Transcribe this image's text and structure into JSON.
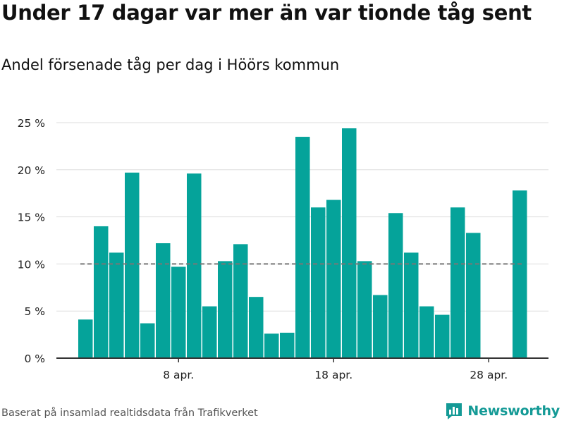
{
  "title": "Under 17 dagar var mer än var tionde tåg sent",
  "subtitle": "Andel försenade tåg per dag i Höörs kommun",
  "footer": "Baserat på insamlad realtidsdata från Trafikverket",
  "brand": {
    "name": "Newsworthy",
    "icon": "bar-chart-logo-icon",
    "color": "#149a96"
  },
  "colors": {
    "bar": "#05a39a",
    "grid": "#dddddd",
    "axis": "#333333",
    "reference_line": "#777777"
  },
  "chart_data": {
    "type": "bar",
    "title": "Under 17 dagar var mer än var tionde tåg sent",
    "subtitle": "Andel försenade tåg per dag i Höörs kommun",
    "xlabel": "",
    "ylabel": "",
    "x_unit": "day of April",
    "categories": [
      2,
      3,
      4,
      5,
      6,
      7,
      8,
      9,
      10,
      11,
      12,
      13,
      14,
      15,
      16,
      17,
      18,
      19,
      20,
      21,
      22,
      23,
      24,
      25,
      26,
      27,
      28,
      29,
      30
    ],
    "values": [
      4.1,
      14.0,
      11.2,
      19.7,
      3.7,
      12.2,
      9.7,
      19.6,
      5.5,
      10.3,
      12.1,
      6.5,
      2.6,
      2.7,
      23.5,
      16.0,
      16.8,
      24.4,
      10.3,
      6.7,
      15.4,
      11.2,
      5.5,
      4.6,
      16.0,
      13.3,
      0,
      0,
      17.8
    ],
    "x_ticks": [
      {
        "day": 8,
        "label": "8 apr."
      },
      {
        "day": 18,
        "label": "18 apr."
      },
      {
        "day": 28,
        "label": "28 apr."
      }
    ],
    "y_ticks": [
      {
        "value": 0,
        "label": "0 %"
      },
      {
        "value": 5,
        "label": "5 %"
      },
      {
        "value": 10,
        "label": "10 %"
      },
      {
        "value": 15,
        "label": "15 %"
      },
      {
        "value": 20,
        "label": "20 %"
      },
      {
        "value": 25,
        "label": "25 %"
      }
    ],
    "ylim": [
      0,
      25
    ],
    "reference_line": {
      "value": 10,
      "style": "dashed"
    },
    "grid": true,
    "legend": "none"
  }
}
